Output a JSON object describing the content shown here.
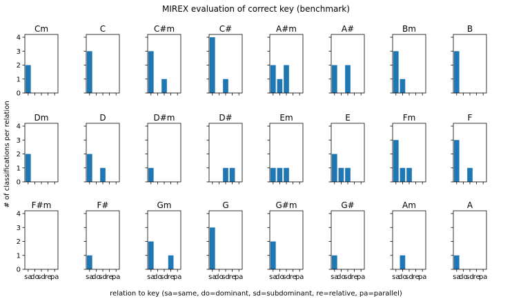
{
  "chart_data": {
    "type": "bar",
    "title": "MIREX evaluation of correct key (benchmark)",
    "xlabel": "relation to key (sa=same, do=dominant, sd=subdominant, re=relative, pa=parallel)",
    "ylabel": "# of classifications per relation",
    "categories": [
      "sa",
      "do",
      "sd",
      "re",
      "pa"
    ],
    "ylim": [
      0,
      4.2
    ],
    "yticks": [
      0,
      1,
      2,
      3,
      4
    ],
    "grid": false,
    "bar_color": "#1f77b4",
    "panels": [
      {
        "key": "Cm",
        "values": [
          2,
          0,
          0,
          0,
          0
        ]
      },
      {
        "key": "C",
        "values": [
          3,
          0,
          0,
          0,
          0
        ]
      },
      {
        "key": "C#m",
        "values": [
          3,
          0,
          1,
          0,
          0
        ]
      },
      {
        "key": "C#",
        "values": [
          4,
          0,
          1,
          0,
          0
        ]
      },
      {
        "key": "A#m",
        "values": [
          2,
          1,
          2,
          0,
          0
        ]
      },
      {
        "key": "A#",
        "values": [
          2,
          0,
          2,
          0,
          0
        ]
      },
      {
        "key": "Bm",
        "values": [
          3,
          1,
          0,
          0,
          0
        ]
      },
      {
        "key": "B",
        "values": [
          3,
          0,
          0,
          0,
          0
        ]
      },
      {
        "key": "Dm",
        "values": [
          2,
          0,
          0,
          0,
          0
        ]
      },
      {
        "key": "D",
        "values": [
          2,
          0,
          1,
          0,
          0
        ]
      },
      {
        "key": "D#m",
        "values": [
          1,
          0,
          0,
          0,
          0
        ]
      },
      {
        "key": "D#",
        "values": [
          0,
          0,
          1,
          1,
          0
        ]
      },
      {
        "key": "Em",
        "values": [
          1,
          1,
          1,
          0,
          0
        ]
      },
      {
        "key": "E",
        "values": [
          2,
          1,
          1,
          0,
          0
        ]
      },
      {
        "key": "Fm",
        "values": [
          3,
          1,
          1,
          0,
          0
        ]
      },
      {
        "key": "F",
        "values": [
          3,
          0,
          1,
          0,
          0
        ]
      },
      {
        "key": "F#m",
        "values": [
          0,
          0,
          0,
          0,
          0
        ]
      },
      {
        "key": "F#",
        "values": [
          1,
          0,
          0,
          0,
          0
        ]
      },
      {
        "key": "Gm",
        "values": [
          2,
          0,
          0,
          1,
          0
        ]
      },
      {
        "key": "G",
        "values": [
          3,
          0,
          0,
          0,
          0
        ]
      },
      {
        "key": "G#m",
        "values": [
          2,
          0,
          0,
          0,
          0
        ]
      },
      {
        "key": "G#",
        "values": [
          1,
          0,
          0,
          0,
          0
        ]
      },
      {
        "key": "Am",
        "values": [
          0,
          1,
          0,
          0,
          0
        ]
      },
      {
        "key": "A",
        "values": [
          1,
          0,
          0,
          0,
          0
        ]
      }
    ]
  }
}
